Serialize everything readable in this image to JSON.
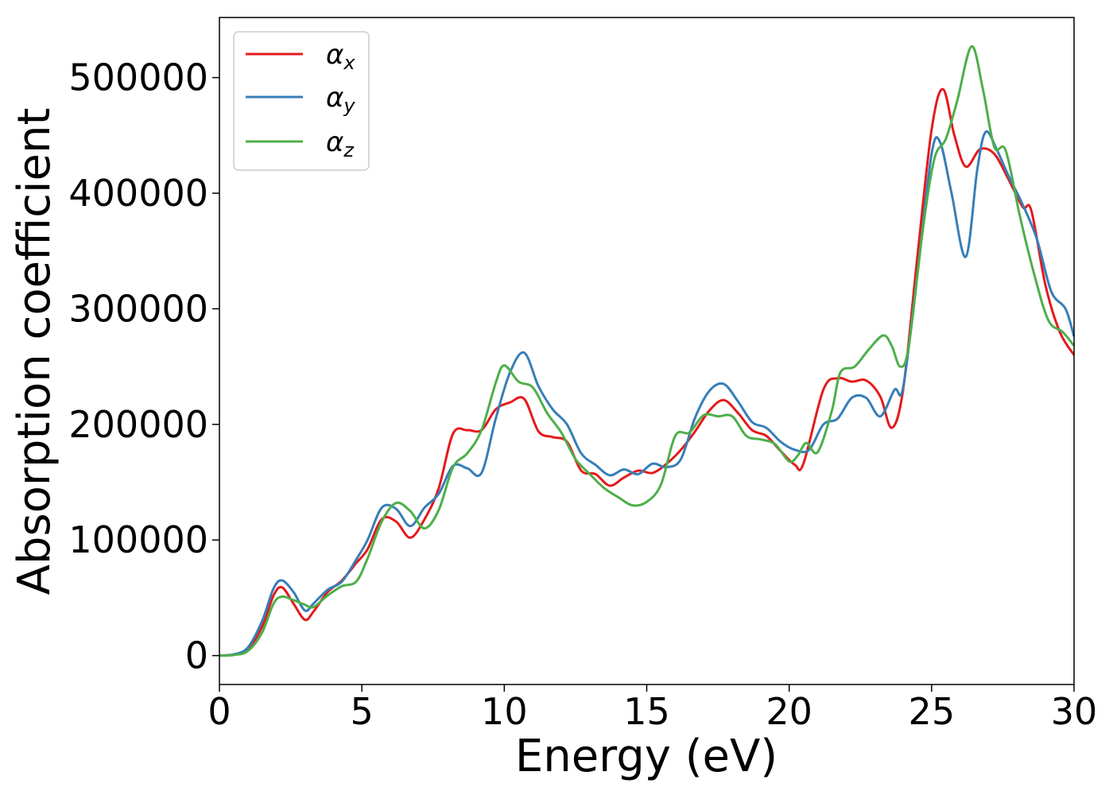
{
  "chart_data": {
    "type": "line",
    "title": "",
    "xlabel": "Energy (eV)",
    "ylabel": "Absorption coefficient",
    "xlim": [
      0,
      30
    ],
    "ylim": [
      -25000,
      552000
    ],
    "xticks": [
      0,
      5,
      10,
      15,
      20,
      25,
      30
    ],
    "yticks": [
      0,
      100000,
      200000,
      300000,
      400000,
      500000
    ],
    "grid": false,
    "legend_position": "top-left",
    "series": [
      {
        "name": "α_x",
        "label_main": "α",
        "label_sub": "x",
        "color": "#e41a1c",
        "points": [
          [
            0,
            0
          ],
          [
            0.5,
            1000
          ],
          [
            1,
            6000
          ],
          [
            1.5,
            25000
          ],
          [
            1.9,
            52000
          ],
          [
            2.2,
            59000
          ],
          [
            2.6,
            45000
          ],
          [
            3,
            31000
          ],
          [
            3.3,
            38000
          ],
          [
            3.8,
            55000
          ],
          [
            4.3,
            65000
          ],
          [
            4.8,
            80000
          ],
          [
            5.2,
            92000
          ],
          [
            5.7,
            118000
          ],
          [
            6.2,
            116000
          ],
          [
            6.7,
            102000
          ],
          [
            7.2,
            118000
          ],
          [
            7.7,
            145000
          ],
          [
            8.2,
            192000
          ],
          [
            8.7,
            195000
          ],
          [
            9.2,
            195000
          ],
          [
            9.7,
            213000
          ],
          [
            10.2,
            219000
          ],
          [
            10.7,
            222000
          ],
          [
            11.2,
            194000
          ],
          [
            11.7,
            189000
          ],
          [
            12.2,
            185000
          ],
          [
            12.7,
            160000
          ],
          [
            13.2,
            157000
          ],
          [
            13.7,
            147000
          ],
          [
            14.2,
            154000
          ],
          [
            14.7,
            160000
          ],
          [
            15.2,
            158000
          ],
          [
            15.7,
            166000
          ],
          [
            16.2,
            178000
          ],
          [
            16.7,
            194000
          ],
          [
            17.2,
            212000
          ],
          [
            17.7,
            221000
          ],
          [
            18.2,
            210000
          ],
          [
            18.7,
            195000
          ],
          [
            19.2,
            190000
          ],
          [
            19.7,
            177000
          ],
          [
            20.2,
            165000
          ],
          [
            20.5,
            166000
          ],
          [
            21.2,
            230000
          ],
          [
            21.7,
            240000
          ],
          [
            22.2,
            237000
          ],
          [
            22.7,
            238000
          ],
          [
            23.2,
            224000
          ],
          [
            23.6,
            197000
          ],
          [
            24,
            230000
          ],
          [
            24.5,
            345000
          ],
          [
            25,
            455000
          ],
          [
            25.4,
            490000
          ],
          [
            25.8,
            450000
          ],
          [
            26.2,
            423000
          ],
          [
            26.7,
            438000
          ],
          [
            27.2,
            434000
          ],
          [
            27.7,
            412000
          ],
          [
            28.2,
            388000
          ],
          [
            28.5,
            385000
          ],
          [
            29,
            320000
          ],
          [
            29.5,
            280000
          ],
          [
            30,
            260000
          ]
        ]
      },
      {
        "name": "α_y",
        "label_main": "α",
        "label_sub": "y",
        "color": "#377eb8",
        "points": [
          [
            0,
            0
          ],
          [
            0.5,
            1000
          ],
          [
            1,
            7000
          ],
          [
            1.5,
            30000
          ],
          [
            1.9,
            58000
          ],
          [
            2.2,
            65000
          ],
          [
            2.6,
            55000
          ],
          [
            3,
            39000
          ],
          [
            3.3,
            45000
          ],
          [
            3.8,
            57000
          ],
          [
            4.3,
            64000
          ],
          [
            4.8,
            83000
          ],
          [
            5.2,
            100000
          ],
          [
            5.7,
            128000
          ],
          [
            6.2,
            127000
          ],
          [
            6.7,
            112000
          ],
          [
            7.2,
            128000
          ],
          [
            7.7,
            140000
          ],
          [
            8.2,
            164000
          ],
          [
            8.7,
            162000
          ],
          [
            9.2,
            158000
          ],
          [
            9.7,
            205000
          ],
          [
            10.2,
            245000
          ],
          [
            10.7,
            262000
          ],
          [
            11.2,
            233000
          ],
          [
            11.7,
            213000
          ],
          [
            12.2,
            200000
          ],
          [
            12.7,
            175000
          ],
          [
            13.2,
            165000
          ],
          [
            13.7,
            156000
          ],
          [
            14.2,
            161000
          ],
          [
            14.7,
            157000
          ],
          [
            15.2,
            166000
          ],
          [
            15.7,
            163000
          ],
          [
            16.2,
            170000
          ],
          [
            16.7,
            206000
          ],
          [
            17.2,
            229000
          ],
          [
            17.7,
            235000
          ],
          [
            18.2,
            220000
          ],
          [
            18.7,
            202000
          ],
          [
            19.2,
            197000
          ],
          [
            19.7,
            185000
          ],
          [
            20.2,
            178000
          ],
          [
            20.7,
            178000
          ],
          [
            21.2,
            200000
          ],
          [
            21.7,
            205000
          ],
          [
            22.2,
            223000
          ],
          [
            22.7,
            223000
          ],
          [
            23.2,
            207000
          ],
          [
            23.7,
            230000
          ],
          [
            24,
            232000
          ],
          [
            24.5,
            330000
          ],
          [
            25,
            434000
          ],
          [
            25.3,
            444000
          ],
          [
            25.7,
            400000
          ],
          [
            26.2,
            345000
          ],
          [
            26.6,
            420000
          ],
          [
            26.9,
            453000
          ],
          [
            27.3,
            437000
          ],
          [
            27.7,
            415000
          ],
          [
            28.2,
            390000
          ],
          [
            28.7,
            360000
          ],
          [
            29.2,
            315000
          ],
          [
            29.7,
            300000
          ],
          [
            30,
            276000
          ]
        ]
      },
      {
        "name": "α_z",
        "label_main": "α",
        "label_sub": "z",
        "color": "#4daf4a",
        "points": [
          [
            0,
            0
          ],
          [
            0.5,
            500
          ],
          [
            1,
            4000
          ],
          [
            1.5,
            20000
          ],
          [
            1.9,
            45000
          ],
          [
            2.2,
            51000
          ],
          [
            2.6,
            48000
          ],
          [
            3,
            44000
          ],
          [
            3.3,
            42000
          ],
          [
            3.8,
            52000
          ],
          [
            4.3,
            60000
          ],
          [
            4.8,
            64000
          ],
          [
            5.2,
            84000
          ],
          [
            5.7,
            116000
          ],
          [
            6.2,
            132000
          ],
          [
            6.7,
            125000
          ],
          [
            7.2,
            110000
          ],
          [
            7.7,
            126000
          ],
          [
            8.2,
            163000
          ],
          [
            8.7,
            175000
          ],
          [
            9.2,
            195000
          ],
          [
            9.7,
            236000
          ],
          [
            10,
            251000
          ],
          [
            10.5,
            237000
          ],
          [
            11,
            232000
          ],
          [
            11.5,
            210000
          ],
          [
            12,
            193000
          ],
          [
            12.5,
            170000
          ],
          [
            13,
            157000
          ],
          [
            13.5,
            145000
          ],
          [
            14,
            137000
          ],
          [
            14.5,
            130000
          ],
          [
            15,
            133000
          ],
          [
            15.5,
            148000
          ],
          [
            16,
            190000
          ],
          [
            16.5,
            193000
          ],
          [
            17,
            208000
          ],
          [
            17.5,
            207000
          ],
          [
            18,
            207000
          ],
          [
            18.5,
            190000
          ],
          [
            19,
            187000
          ],
          [
            19.5,
            183000
          ],
          [
            20,
            168000
          ],
          [
            20.3,
            173000
          ],
          [
            20.6,
            184000
          ],
          [
            21,
            176000
          ],
          [
            21.5,
            212000
          ],
          [
            21.8,
            245000
          ],
          [
            22.3,
            250000
          ],
          [
            22.8,
            265000
          ],
          [
            23.3,
            277000
          ],
          [
            23.6,
            268000
          ],
          [
            23.9,
            250000
          ],
          [
            24.2,
            268000
          ],
          [
            24.7,
            370000
          ],
          [
            25.1,
            430000
          ],
          [
            25.5,
            447000
          ],
          [
            25.9,
            480000
          ],
          [
            26.4,
            527000
          ],
          [
            26.8,
            490000
          ],
          [
            27.2,
            440000
          ],
          [
            27.6,
            437000
          ],
          [
            28.1,
            380000
          ],
          [
            28.6,
            330000
          ],
          [
            29.1,
            290000
          ],
          [
            29.6,
            280000
          ],
          [
            30,
            268000
          ]
        ]
      }
    ]
  }
}
